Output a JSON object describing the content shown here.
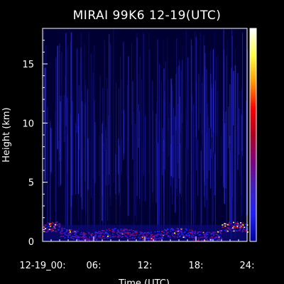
{
  "chart_data": {
    "type": "heatmap",
    "title": "MIRAI 99K6 12-19(UTC)",
    "xlabel": "Time (UTC)",
    "ylabel": "Height (km)",
    "xlim": [
      0,
      24
    ],
    "ylim": [
      0,
      18
    ],
    "x_ticks": [
      0,
      6,
      12,
      18,
      24
    ],
    "x_tick_labels": [
      "12-19_00:",
      "06:",
      "12:",
      "18:",
      "24:"
    ],
    "y_ticks": [
      0,
      5,
      10,
      15
    ],
    "y_tick_labels": [
      "0",
      "5",
      "10",
      "15"
    ],
    "grid": false,
    "colorbar": {
      "position": "right",
      "colors": [
        "#ffffff",
        "#ffff40",
        "#ff9900",
        "#ff0000",
        "#b00020",
        "#800080",
        "#4020c0",
        "#2020ff",
        "#0000a0"
      ]
    },
    "background_color": "#000033",
    "features": [
      {
        "name": "low cloud / boundary-layer echo",
        "x_range": [
          0,
          24
        ],
        "height_range": [
          0,
          2
        ],
        "intensity": "high near 0-2 and 22-24 UTC"
      },
      {
        "name": "vertical noise streaks",
        "x_range": [
          0,
          24
        ],
        "height_range": [
          0,
          18
        ],
        "intensity": "low"
      }
    ]
  }
}
